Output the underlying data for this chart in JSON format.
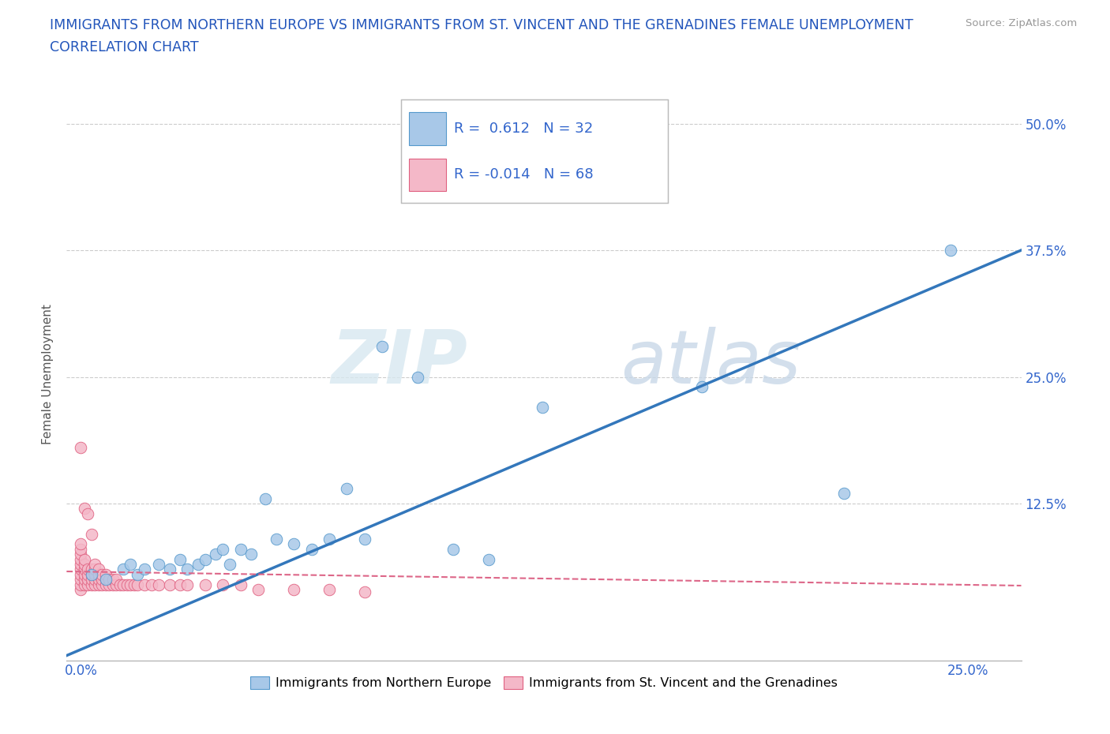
{
  "title_line1": "IMMIGRANTS FROM NORTHERN EUROPE VS IMMIGRANTS FROM ST. VINCENT AND THE GRENADINES FEMALE UNEMPLOYMENT",
  "title_line2": "CORRELATION CHART",
  "source_text": "Source: ZipAtlas.com",
  "ylabel": "Female Unemployment",
  "x_ticks": [
    0.0,
    0.05,
    0.1,
    0.15,
    0.2,
    0.25
  ],
  "x_tick_labels": [
    "0.0%",
    "",
    "",
    "",
    "",
    "25.0%"
  ],
  "y_ticks": [
    0.0,
    0.125,
    0.25,
    0.375,
    0.5
  ],
  "y_tick_labels_left": [
    "",
    "",
    "",
    "",
    ""
  ],
  "y_tick_labels_right": [
    "",
    "12.5%",
    "25.0%",
    "37.5%",
    "50.0%"
  ],
  "xlim": [
    -0.004,
    0.265
  ],
  "ylim": [
    -0.03,
    0.535
  ],
  "blue_R": 0.612,
  "blue_N": 32,
  "pink_R": -0.014,
  "pink_N": 68,
  "blue_color": "#a8c8e8",
  "pink_color": "#f4b8c8",
  "blue_edge_color": "#5599cc",
  "pink_edge_color": "#e06080",
  "blue_line_color": "#3377bb",
  "pink_line_color": "#dd6688",
  "watermark_zip": "ZIP",
  "watermark_atlas": "atlas",
  "blue_scatter_x": [
    0.003,
    0.007,
    0.012,
    0.014,
    0.016,
    0.018,
    0.022,
    0.025,
    0.028,
    0.03,
    0.033,
    0.035,
    0.038,
    0.04,
    0.042,
    0.045,
    0.048,
    0.052,
    0.055,
    0.06,
    0.065,
    0.07,
    0.075,
    0.08,
    0.085,
    0.095,
    0.105,
    0.115,
    0.13,
    0.175,
    0.215,
    0.245
  ],
  "blue_scatter_y": [
    0.055,
    0.05,
    0.06,
    0.065,
    0.055,
    0.06,
    0.065,
    0.06,
    0.07,
    0.06,
    0.065,
    0.07,
    0.075,
    0.08,
    0.065,
    0.08,
    0.075,
    0.13,
    0.09,
    0.085,
    0.08,
    0.09,
    0.14,
    0.09,
    0.28,
    0.25,
    0.08,
    0.07,
    0.22,
    0.24,
    0.135,
    0.375
  ],
  "pink_scatter_x": [
    0.0,
    0.0,
    0.0,
    0.0,
    0.0,
    0.0,
    0.0,
    0.0,
    0.0,
    0.0,
    0.0,
    0.001,
    0.001,
    0.001,
    0.001,
    0.001,
    0.001,
    0.001,
    0.002,
    0.002,
    0.002,
    0.002,
    0.002,
    0.003,
    0.003,
    0.003,
    0.003,
    0.003,
    0.004,
    0.004,
    0.004,
    0.004,
    0.004,
    0.005,
    0.005,
    0.005,
    0.005,
    0.006,
    0.006,
    0.006,
    0.007,
    0.007,
    0.007,
    0.008,
    0.008,
    0.009,
    0.009,
    0.01,
    0.01,
    0.011,
    0.012,
    0.013,
    0.014,
    0.015,
    0.016,
    0.018,
    0.02,
    0.022,
    0.025,
    0.028,
    0.03,
    0.035,
    0.04,
    0.045,
    0.05,
    0.06,
    0.07,
    0.08
  ],
  "pink_scatter_y": [
    0.04,
    0.045,
    0.05,
    0.055,
    0.06,
    0.065,
    0.07,
    0.075,
    0.08,
    0.085,
    0.18,
    0.045,
    0.05,
    0.055,
    0.06,
    0.065,
    0.07,
    0.12,
    0.045,
    0.05,
    0.055,
    0.06,
    0.115,
    0.045,
    0.05,
    0.055,
    0.06,
    0.095,
    0.045,
    0.05,
    0.055,
    0.06,
    0.065,
    0.045,
    0.05,
    0.055,
    0.06,
    0.045,
    0.05,
    0.055,
    0.045,
    0.05,
    0.055,
    0.045,
    0.05,
    0.045,
    0.05,
    0.045,
    0.05,
    0.045,
    0.045,
    0.045,
    0.045,
    0.045,
    0.045,
    0.045,
    0.045,
    0.045,
    0.045,
    0.045,
    0.045,
    0.045,
    0.045,
    0.045,
    0.04,
    0.04,
    0.04,
    0.038
  ],
  "blue_trend_x": [
    -0.004,
    0.265
  ],
  "blue_trend_y": [
    -0.025,
    0.375
  ],
  "pink_trend_x": [
    -0.004,
    0.265
  ],
  "pink_trend_y": [
    0.058,
    0.044
  ]
}
